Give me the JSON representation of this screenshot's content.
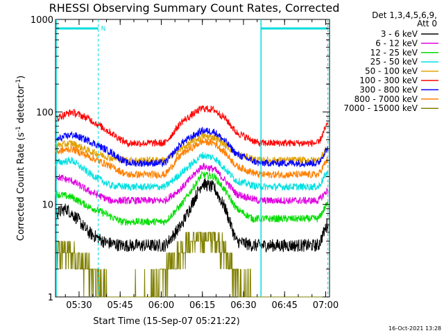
{
  "chart_data": {
    "type": "line",
    "title": "RHESSI Observing Summary Count Rates, Corrected",
    "xlabel": "Start Time (15-Sep-07 05:21:22)",
    "ylabel_main": "Corrected Count Rate (s",
    "ylabel_sup1": "-1",
    "ylabel_mid": " detector",
    "ylabel_sup2": "-1",
    "ylabel_end": ")",
    "yscale": "log",
    "ylim": [
      1,
      1000
    ],
    "xlim_minutes": [
      0,
      100
    ],
    "x_ticks": [
      {
        "label": "05:30",
        "minute": 8.6
      },
      {
        "label": "05:45",
        "minute": 23.6
      },
      {
        "label": "06:00",
        "minute": 38.6
      },
      {
        "label": "06:15",
        "minute": 53.6
      },
      {
        "label": "06:30",
        "minute": 68.6
      },
      {
        "label": "06:45",
        "minute": 83.6
      },
      {
        "label": "07:00",
        "minute": 98.6
      }
    ],
    "y_ticks": [
      {
        "label": "1",
        "value": 1
      },
      {
        "label": "10",
        "value": 10
      },
      {
        "label": "100",
        "value": 100
      },
      {
        "label": "1000",
        "value": 1000
      }
    ],
    "legend_header": [
      "Det 1,3,4,5,6,9,",
      "Att 0"
    ],
    "legend_placement": "right",
    "series": [
      {
        "name": "3 - 6 keV",
        "color": "#000000",
        "knots": [
          [
            0,
            8
          ],
          [
            4,
            9
          ],
          [
            8,
            7
          ],
          [
            12,
            5
          ],
          [
            18,
            3.9
          ],
          [
            24,
            3.6
          ],
          [
            40,
            3.6
          ],
          [
            46,
            6
          ],
          [
            53.5,
            17
          ],
          [
            58,
            15
          ],
          [
            62,
            9
          ],
          [
            66,
            4
          ],
          [
            72,
            3.6
          ],
          [
            96,
            3.6
          ],
          [
            99,
            6
          ]
        ]
      },
      {
        "name": "6 - 12 keV",
        "color": "#e000e0",
        "knots": [
          [
            0,
            20
          ],
          [
            6,
            18
          ],
          [
            12,
            14
          ],
          [
            20,
            11
          ],
          [
            26,
            11
          ],
          [
            40,
            11
          ],
          [
            46,
            15
          ],
          [
            53.5,
            26
          ],
          [
            58,
            24
          ],
          [
            62,
            18
          ],
          [
            66,
            13
          ],
          [
            74,
            11
          ],
          [
            96,
            11
          ],
          [
            99,
            14
          ]
        ]
      },
      {
        "name": "12 - 25 keV",
        "color": "#00dd00",
        "knots": [
          [
            0,
            13
          ],
          [
            6,
            12
          ],
          [
            12,
            9.5
          ],
          [
            18,
            8
          ],
          [
            24,
            6.5
          ],
          [
            40,
            6.5
          ],
          [
            46,
            10
          ],
          [
            53.5,
            21
          ],
          [
            58,
            20
          ],
          [
            62,
            14
          ],
          [
            66,
            9
          ],
          [
            72,
            7
          ],
          [
            96,
            7
          ],
          [
            99,
            10
          ]
        ]
      },
      {
        "name": "25 - 50 keV",
        "color": "#00e0e0",
        "knots": [
          [
            0,
            28
          ],
          [
            6,
            30
          ],
          [
            12,
            22
          ],
          [
            20,
            16
          ],
          [
            26,
            15.5
          ],
          [
            40,
            15.5
          ],
          [
            46,
            22
          ],
          [
            53.5,
            34
          ],
          [
            58,
            32
          ],
          [
            62,
            24
          ],
          [
            66,
            18
          ],
          [
            74,
            15.5
          ],
          [
            96,
            15.5
          ],
          [
            99,
            22
          ]
        ]
      },
      {
        "name": "50 - 100 keV",
        "color": "#e0a000",
        "knots": [
          [
            0,
            43
          ],
          [
            6,
            46
          ],
          [
            12,
            38
          ],
          [
            20,
            32
          ],
          [
            26,
            30
          ],
          [
            40,
            30
          ],
          [
            46,
            40
          ],
          [
            53.5,
            55
          ],
          [
            58,
            53
          ],
          [
            62,
            44
          ],
          [
            66,
            35
          ],
          [
            74,
            30
          ],
          [
            96,
            30
          ],
          [
            99,
            40
          ]
        ]
      },
      {
        "name": "100 - 300 keV",
        "color": "#ff0000",
        "knots": [
          [
            0,
            85
          ],
          [
            6,
            100
          ],
          [
            12,
            85
          ],
          [
            20,
            60
          ],
          [
            26,
            46
          ],
          [
            40,
            46
          ],
          [
            46,
            78
          ],
          [
            53.5,
            110
          ],
          [
            58,
            105
          ],
          [
            62,
            85
          ],
          [
            66,
            60
          ],
          [
            74,
            46
          ],
          [
            96,
            46
          ],
          [
            99,
            72
          ]
        ]
      },
      {
        "name": "300 - 800 keV",
        "color": "#0000ff",
        "knots": [
          [
            0,
            50
          ],
          [
            6,
            57
          ],
          [
            12,
            49
          ],
          [
            20,
            37
          ],
          [
            26,
            28
          ],
          [
            40,
            28
          ],
          [
            46,
            46
          ],
          [
            53.5,
            63
          ],
          [
            58,
            61
          ],
          [
            62,
            48
          ],
          [
            66,
            35
          ],
          [
            74,
            28
          ],
          [
            96,
            28
          ],
          [
            99,
            40
          ]
        ]
      },
      {
        "name": "800 - 7000 keV",
        "color": "#ff8000",
        "knots": [
          [
            0,
            37
          ],
          [
            6,
            40
          ],
          [
            12,
            33
          ],
          [
            20,
            26
          ],
          [
            26,
            21
          ],
          [
            40,
            21
          ],
          [
            46,
            35
          ],
          [
            53.5,
            48
          ],
          [
            58,
            46
          ],
          [
            62,
            36
          ],
          [
            66,
            26
          ],
          [
            74,
            21
          ],
          [
            96,
            21
          ],
          [
            99,
            30
          ]
        ]
      },
      {
        "name": "7000 - 15000 keV",
        "color": "#808000",
        "knots": [
          [
            0,
            3
          ],
          [
            5,
            3
          ],
          [
            12,
            2
          ],
          [
            20,
            1
          ],
          [
            27,
            1
          ],
          [
            36,
            1.2
          ],
          [
            41,
            2
          ],
          [
            47,
            3.5
          ],
          [
            53.5,
            4.5
          ],
          [
            58,
            4.5
          ],
          [
            62,
            3
          ],
          [
            66,
            1.5
          ],
          [
            72,
            1
          ],
          [
            100,
            1
          ]
        ]
      }
    ],
    "attenuator_bars": [
      [
        0,
        15.6
      ],
      [
        75,
        99.4
      ]
    ],
    "night_marker": "N",
    "vertical_markers_minutes": [
      15.6,
      75,
      99.4
    ],
    "colors": {
      "cyan": "#00dddd"
    }
  },
  "timestamp": "16-Oct-2021 13:28"
}
